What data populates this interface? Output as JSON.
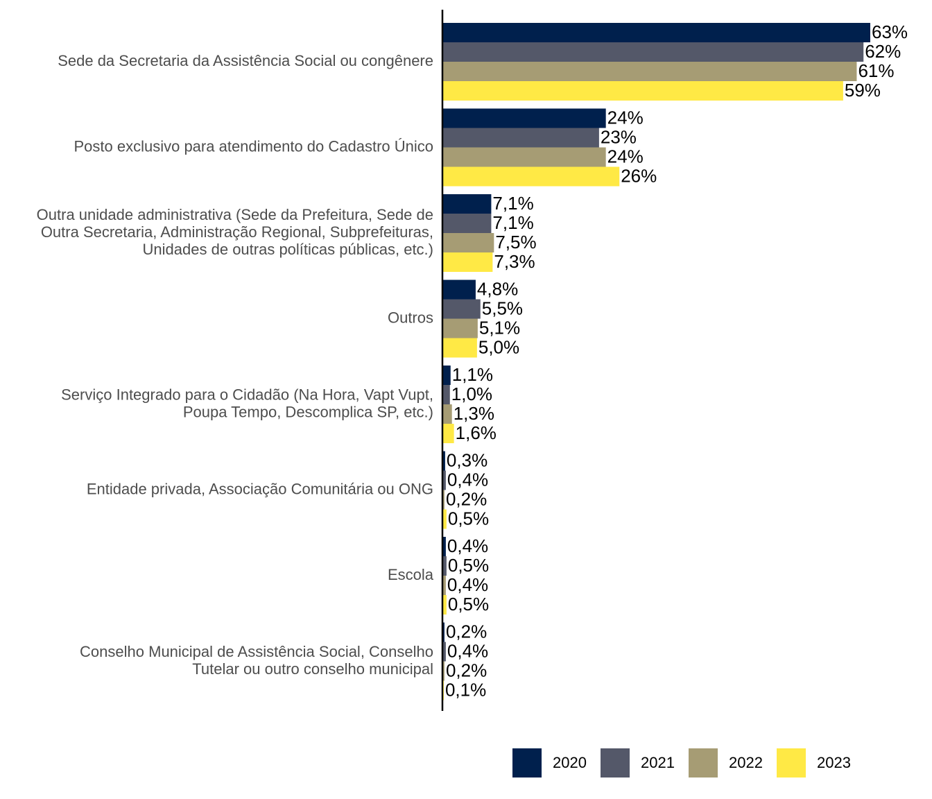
{
  "chart_data": {
    "type": "bar",
    "orientation": "horizontal",
    "title": "",
    "xlabel": "",
    "ylabel": "",
    "xlim": [
      0,
      63
    ],
    "grid": false,
    "legend_position": "bottom-right",
    "categories": [
      [
        "Sede da Secretaria da Assistência Social ou congênere"
      ],
      [
        "Posto exclusivo para atendimento do Cadastro Único"
      ],
      [
        "Outra unidade administrativa (Sede da Prefeitura, Sede de",
        "Outra Secretaria, Administração Regional, Subprefeituras,",
        "Unidades de outras políticas públicas, etc.)"
      ],
      [
        "Outros"
      ],
      [
        "Serviço Integrado para o Cidadão (Na Hora, Vapt Vupt,",
        "Poupa Tempo, Descomplica SP, etc.)"
      ],
      [
        "Entidade privada, Associação Comunitária ou ONG"
      ],
      [
        "Escola"
      ],
      [
        "Conselho Municipal de Assistência Social, Conselho",
        "Tutelar ou outro conselho municipal"
      ]
    ],
    "series": [
      {
        "name": "2020",
        "color": "#00204d",
        "values": [
          63,
          24,
          7.1,
          4.8,
          1.1,
          0.3,
          0.4,
          0.2
        ],
        "labels": [
          "63%",
          "24%",
          "7,1%",
          "4,8%",
          "1,1%",
          "0,3%",
          "0,4%",
          "0,2%"
        ]
      },
      {
        "name": "2021",
        "color": "#545869",
        "values": [
          62,
          23,
          7.1,
          5.5,
          1.0,
          0.4,
          0.5,
          0.4
        ],
        "labels": [
          "62%",
          "23%",
          "7,1%",
          "5,5%",
          "1,0%",
          "0,4%",
          "0,5%",
          "0,4%"
        ]
      },
      {
        "name": "2022",
        "color": "#a69c74",
        "values": [
          61,
          24,
          7.5,
          5.1,
          1.3,
          0.2,
          0.4,
          0.2
        ],
        "labels": [
          "61%",
          "24%",
          "7,5%",
          "5,1%",
          "1,3%",
          "0,2%",
          "0,4%",
          "0,2%"
        ]
      },
      {
        "name": "2023",
        "color": "#ffe945",
        "values": [
          59,
          26,
          7.3,
          5.0,
          1.6,
          0.5,
          0.5,
          0.1
        ],
        "labels": [
          "59%",
          "26%",
          "7,3%",
          "5,0%",
          "1,6%",
          "0,5%",
          "0,5%",
          "0,1%"
        ]
      }
    ]
  }
}
